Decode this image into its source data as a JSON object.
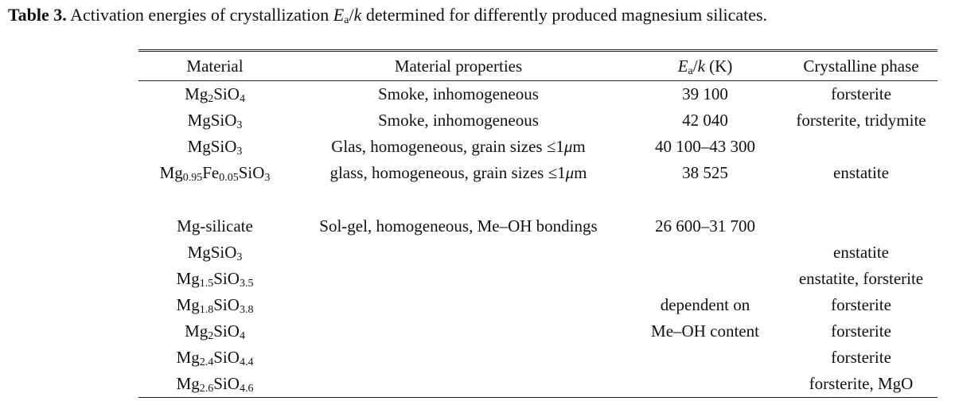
{
  "caption": {
    "label": "Table 3.",
    "text_before": " Activation energies of crystallization ",
    "symbol_E": "E",
    "symbol_sub": "a",
    "symbol_slash": "/",
    "symbol_k": "k",
    "text_after": " determined for differently produced magnesium silicates."
  },
  "header": {
    "material": "Material",
    "properties": "Material properties",
    "energy_E": "E",
    "energy_sub": "a",
    "energy_slash": "/",
    "energy_k": "k",
    "energy_unit": " (K)",
    "phase": "Crystalline phase"
  },
  "rows": [
    {
      "formula": [
        [
          "Mg",
          ""
        ],
        [
          "2",
          "sub"
        ],
        [
          "SiO",
          ""
        ],
        [
          "4",
          "sub"
        ]
      ],
      "properties": "Smoke, inhomogeneous",
      "energy": "39 100",
      "phase": "forsterite"
    },
    {
      "formula": [
        [
          "MgSiO",
          ""
        ],
        [
          "3",
          "sub"
        ]
      ],
      "properties": "Smoke, inhomogeneous",
      "energy": "42 040",
      "phase": "forsterite, tridymite"
    },
    {
      "formula": [
        [
          "MgSiO",
          ""
        ],
        [
          "3",
          "sub"
        ]
      ],
      "properties": "Glas, homogeneous, grain sizes ≤1",
      "mu": "μ",
      "unit": "m",
      "energy": "40 100–43 300",
      "phase": ""
    },
    {
      "formula": [
        [
          "Mg",
          ""
        ],
        [
          "0.95",
          "sub"
        ],
        [
          "Fe",
          ""
        ],
        [
          "0.05",
          "sub"
        ],
        [
          "SiO",
          ""
        ],
        [
          "3",
          "sub"
        ]
      ],
      "properties": "glass, homogeneous, grain sizes ≤1",
      "mu": "μ",
      "unit": "m",
      "energy": "38 525",
      "phase": "enstatite"
    },
    {
      "spacer": true
    },
    {
      "formula": [
        [
          "Mg-silicate",
          ""
        ]
      ],
      "properties": "Sol-gel, homogeneous, Me–OH bondings",
      "energy": "26 600–31 700",
      "phase": ""
    },
    {
      "formula": [
        [
          "MgSiO",
          ""
        ],
        [
          "3",
          "sub"
        ]
      ],
      "properties": "",
      "energy": "",
      "phase": "enstatite"
    },
    {
      "formula": [
        [
          "Mg",
          ""
        ],
        [
          "1.5",
          "sub"
        ],
        [
          "SiO",
          ""
        ],
        [
          "3.5",
          "sub"
        ]
      ],
      "properties": "",
      "energy": "",
      "phase": "enstatite, forsterite"
    },
    {
      "formula": [
        [
          "Mg",
          ""
        ],
        [
          "1.8",
          "sub"
        ],
        [
          "SiO",
          ""
        ],
        [
          "3.8",
          "sub"
        ]
      ],
      "properties": "",
      "energy": "dependent on",
      "phase": "forsterite"
    },
    {
      "formula": [
        [
          "Mg",
          ""
        ],
        [
          "2",
          "sub"
        ],
        [
          "SiO",
          ""
        ],
        [
          "4",
          "sub"
        ]
      ],
      "properties": "",
      "energy": "Me–OH content",
      "phase": "forsterite"
    },
    {
      "formula": [
        [
          "Mg",
          ""
        ],
        [
          "2.4",
          "sub"
        ],
        [
          "SiO",
          ""
        ],
        [
          "4.4",
          "sub"
        ]
      ],
      "properties": "",
      "energy": "",
      "phase": "forsterite"
    },
    {
      "formula": [
        [
          "Mg",
          ""
        ],
        [
          "2.6",
          "sub"
        ],
        [
          "SiO",
          ""
        ],
        [
          "4.6",
          "sub"
        ]
      ],
      "properties": "",
      "energy": "",
      "phase": "forsterite, MgO"
    }
  ]
}
